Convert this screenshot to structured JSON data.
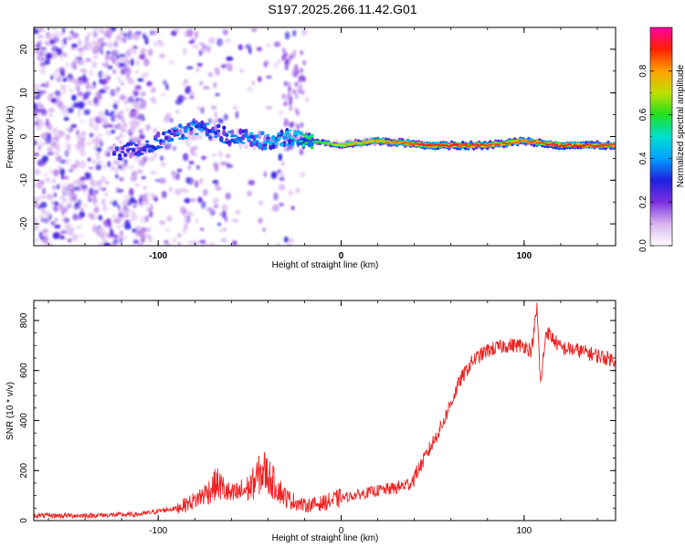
{
  "title": "S197.2025.266.11.42.G01",
  "chart_data": [
    {
      "type": "heatmap",
      "name": "spectrogram",
      "xlabel": "Height of straight line (km)",
      "ylabel": "Frequency (Hz)",
      "xlim": [
        -168,
        150
      ],
      "ylim": [
        -25,
        25
      ],
      "xticks": [
        -100,
        0,
        100
      ],
      "yticks": [
        -20,
        -10,
        0,
        10,
        20
      ],
      "grid": false,
      "colorbar": {
        "label": "Normalized spectral amplitude",
        "range": [
          0.0,
          1.0
        ],
        "ticks": [
          0.0,
          0.2,
          0.4,
          0.6,
          0.8
        ],
        "colors": [
          "#ffffff",
          "#d8b4f0",
          "#7b2fe0",
          "#2020e0",
          "#00a0ff",
          "#00e0d0",
          "#20e020",
          "#c0e000",
          "#ffa000",
          "#ff2000",
          "#ff00a0"
        ]
      },
      "ridge": {
        "description_points_x": [
          -120,
          -100,
          -80,
          -60,
          -40,
          -25,
          -15,
          0,
          20,
          50,
          80,
          100,
          120,
          150
        ],
        "frequency": [
          -4,
          -1,
          2,
          0,
          -1,
          0,
          -1,
          -2,
          -1,
          -2,
          -2,
          -1,
          -2,
          -2
        ],
        "amplitude": [
          0.3,
          0.35,
          0.4,
          0.35,
          0.45,
          0.5,
          0.6,
          0.75,
          0.8,
          0.95,
          0.9,
          0.85,
          0.95,
          0.9
        ]
      }
    },
    {
      "type": "line",
      "name": "snr",
      "xlabel": "Height of straight line (km)",
      "ylabel": "SNR (10 * v/v)",
      "xlim": [
        -168,
        150
      ],
      "ylim": [
        0,
        880
      ],
      "xticks": [
        -100,
        0,
        100
      ],
      "yticks": [
        0,
        200,
        400,
        600,
        800
      ],
      "grid": false,
      "series": [
        {
          "name": "SNR",
          "color": "#ee2222",
          "x": [
            -168,
            -140,
            -110,
            -90,
            -80,
            -72,
            -68,
            -60,
            -50,
            -45,
            -42,
            -38,
            -30,
            -20,
            -10,
            0,
            10,
            20,
            30,
            38,
            45,
            55,
            65,
            72,
            80,
            90,
            100,
            104,
            107,
            109,
            112,
            120,
            130,
            140,
            150
          ],
          "y": [
            20,
            20,
            25,
            50,
            80,
            120,
            150,
            100,
            130,
            180,
            200,
            160,
            90,
            60,
            70,
            90,
            105,
            120,
            130,
            150,
            240,
            380,
            560,
            640,
            680,
            700,
            700,
            680,
            850,
            540,
            760,
            690,
            680,
            660,
            640
          ]
        }
      ]
    }
  ]
}
